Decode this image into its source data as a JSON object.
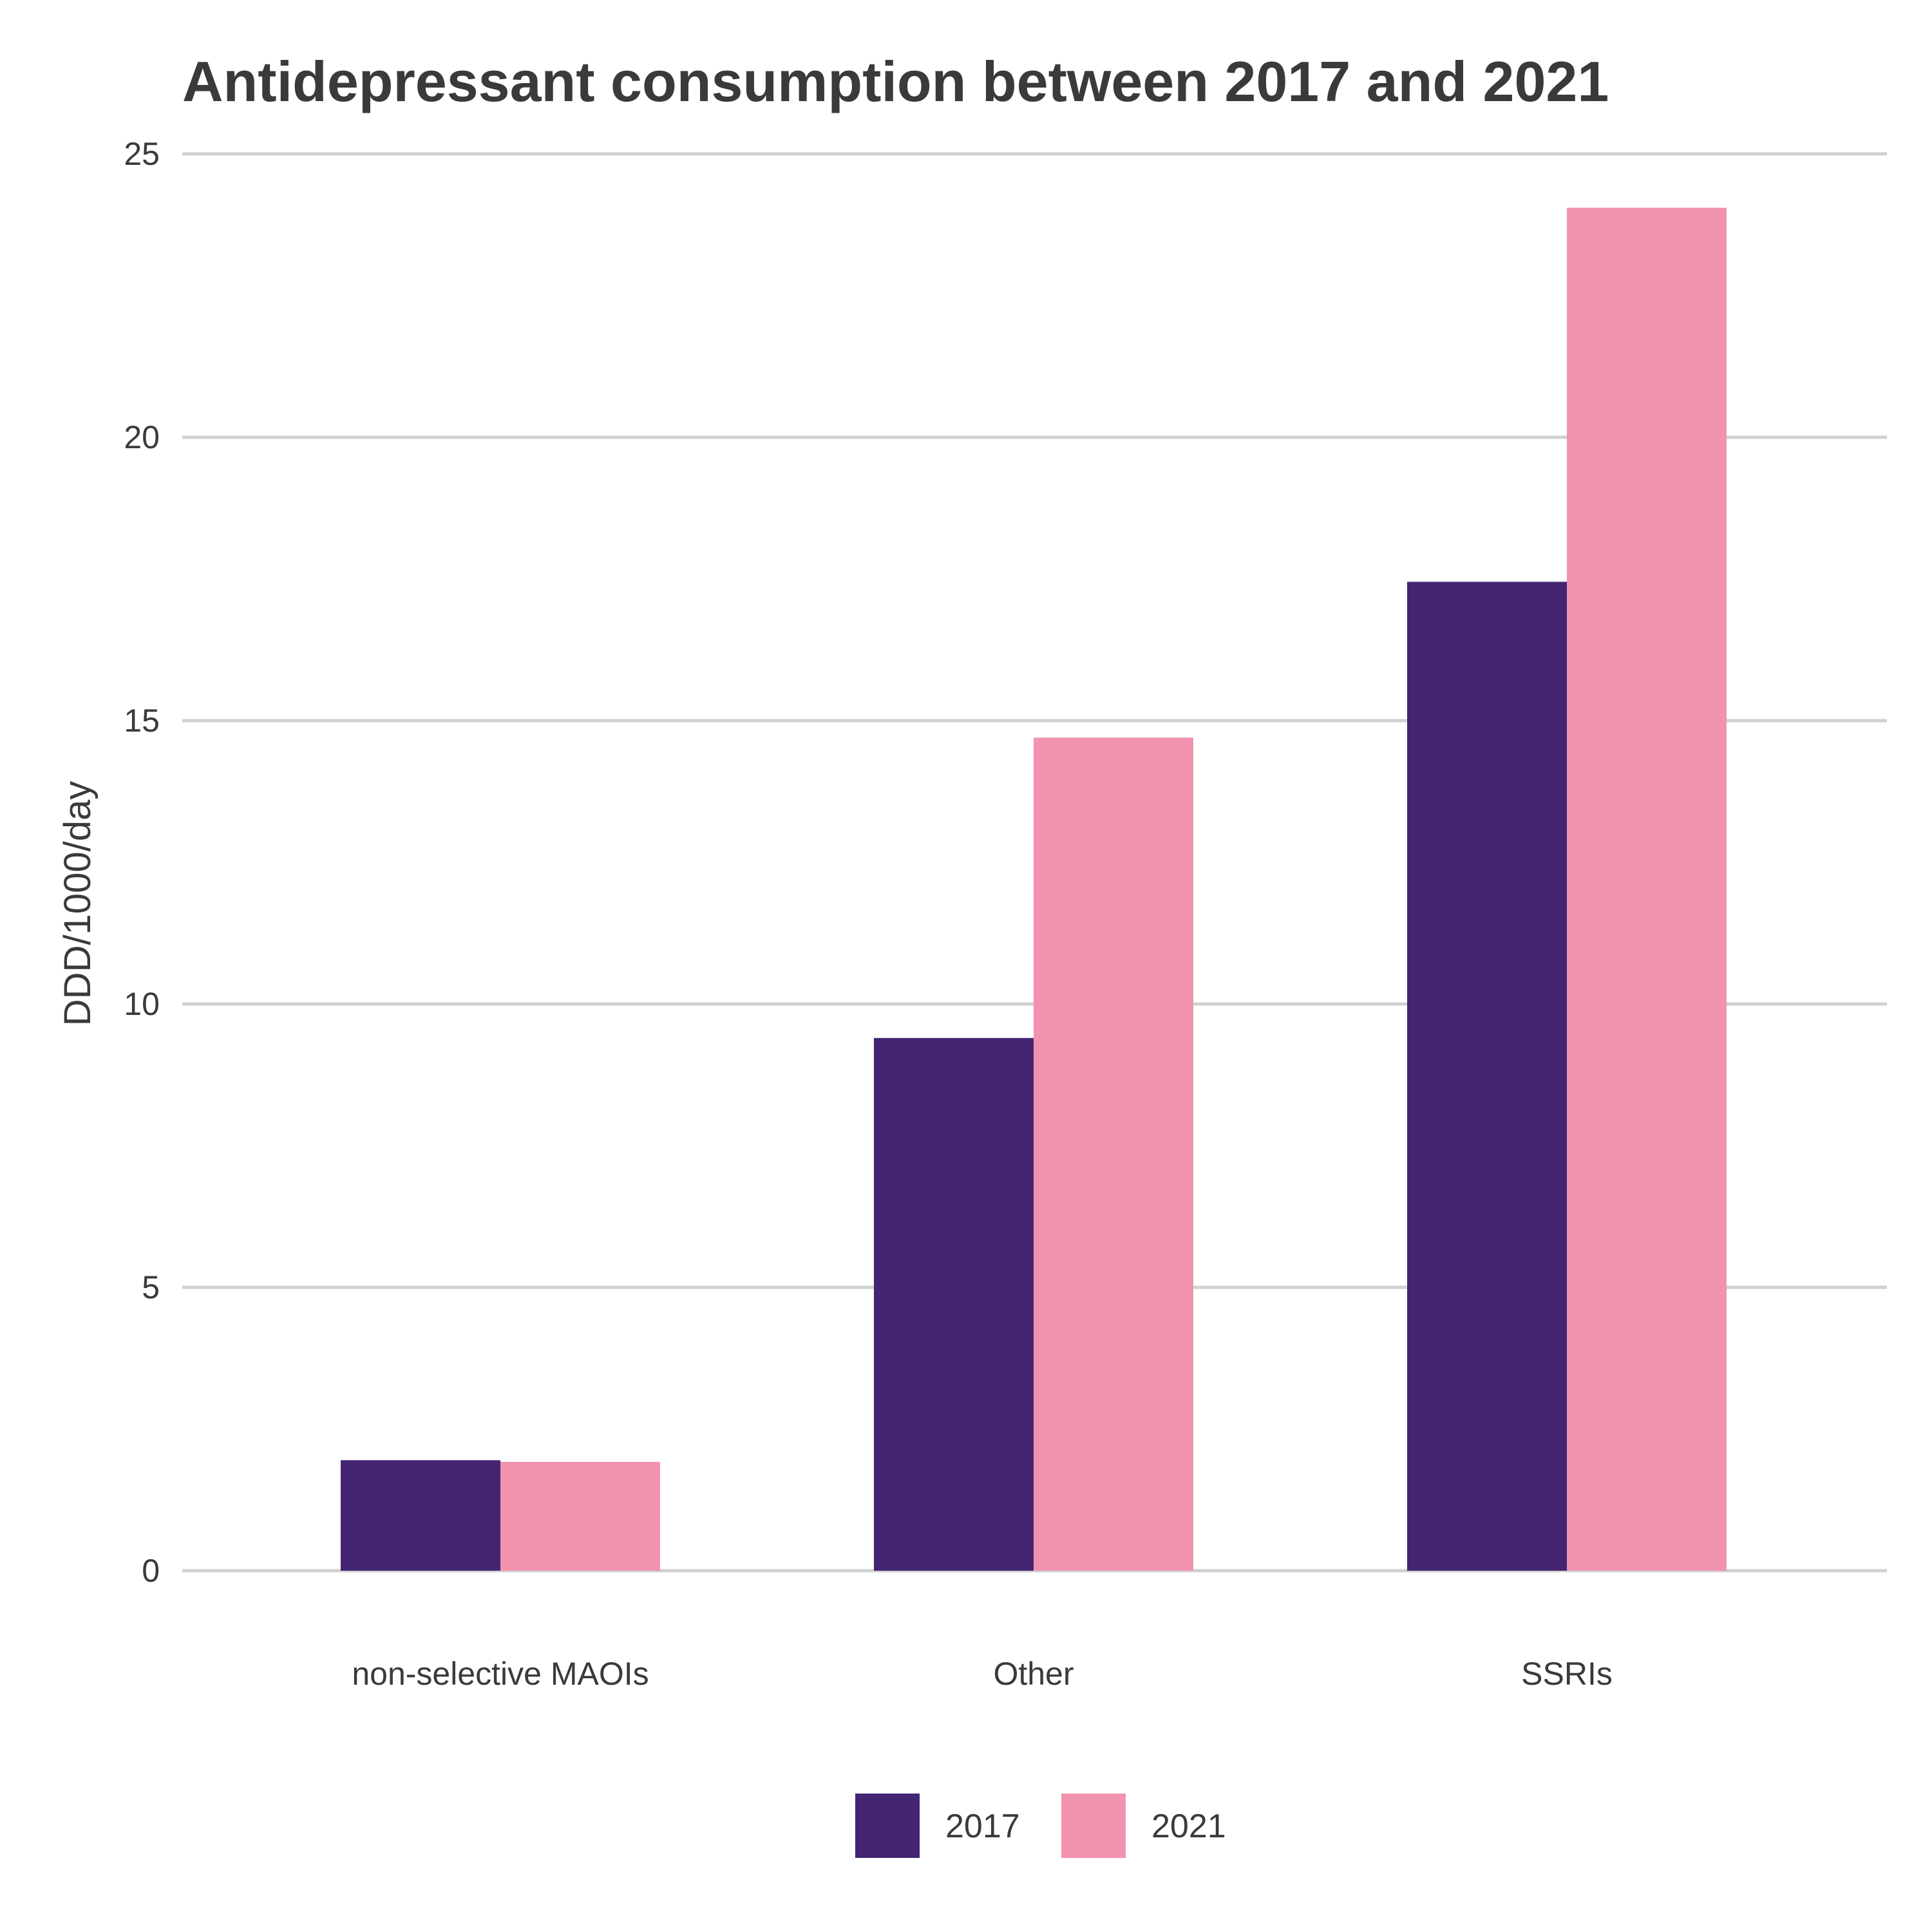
{
  "chart_data": {
    "type": "bar",
    "title": "Antidepressant consumption between 2017 and 2021",
    "xlabel": "",
    "ylabel": "DDD/1000/day",
    "categories": [
      "non-selective MAOIs",
      "Other",
      "SSRIs"
    ],
    "series": [
      {
        "name": "2017",
        "color": "#432573",
        "values": [
          1.95,
          9.4,
          17.45
        ]
      },
      {
        "name": "2021",
        "color": "#f193ae",
        "values": [
          1.92,
          14.7,
          24.05
        ]
      }
    ],
    "ylim": [
      0,
      25
    ],
    "yticks": [
      "0",
      "5",
      "10",
      "15",
      "20",
      "25"
    ],
    "grid": true,
    "legend_position": "bottom"
  }
}
